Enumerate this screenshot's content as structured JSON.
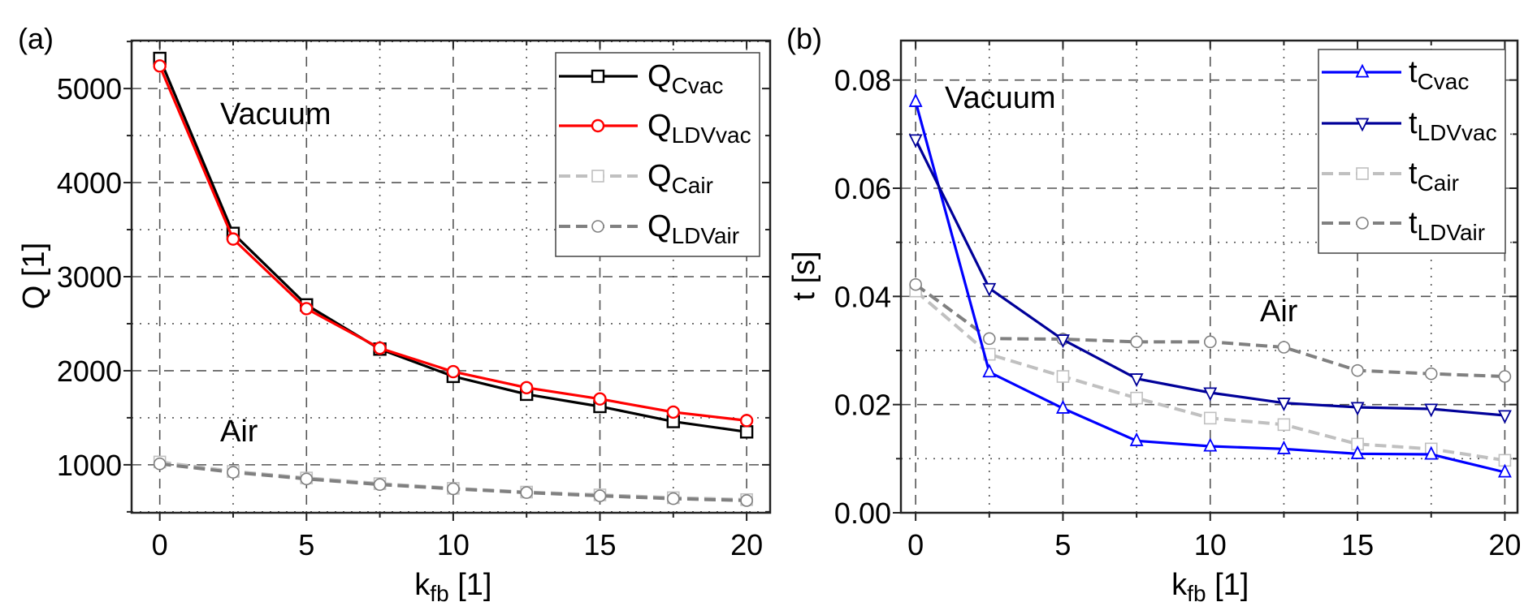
{
  "chart_data": [
    {
      "type": "line",
      "panel_label": "(a)",
      "xlabel": {
        "main": "k",
        "sub": "fb",
        "unit": " [1]"
      },
      "ylabel": "Q [1]",
      "x": [
        0,
        2.5,
        5,
        7.5,
        10,
        12.5,
        15,
        17.5,
        20
      ],
      "xlim": [
        -0.96,
        20.8
      ],
      "ylim": [
        490,
        5510
      ],
      "xticks": [
        0,
        5,
        10,
        15,
        20
      ],
      "yticks": [
        1000,
        2000,
        3000,
        4000,
        5000
      ],
      "grid": true,
      "legend_placement": "top-right",
      "annotations": [
        "Vacuum",
        "Air"
      ],
      "series": [
        {
          "name": "Q",
          "sub": "Cvac",
          "color": "#000000",
          "marker": "square",
          "dash": false,
          "values": [
            5320,
            3460,
            2700,
            2230,
            1940,
            1750,
            1620,
            1460,
            1350
          ]
        },
        {
          "name": "Q",
          "sub": "LDVvac",
          "color": "#ff0000",
          "marker": "circle",
          "dash": false,
          "values": [
            5240,
            3400,
            2660,
            2240,
            1990,
            1820,
            1700,
            1560,
            1470
          ]
        },
        {
          "name": "Q",
          "sub": "Cair",
          "color": "#c0c0c0",
          "marker": "square",
          "dash": true,
          "values": [
            1030,
            930,
            860,
            800,
            750,
            710,
            680,
            650,
            630
          ]
        },
        {
          "name": "Q",
          "sub": "LDVair",
          "color": "#808080",
          "marker": "circle",
          "dash": true,
          "values": [
            1010,
            920,
            850,
            790,
            745,
            705,
            670,
            640,
            620
          ]
        }
      ]
    },
    {
      "type": "line",
      "panel_label": "(b)",
      "xlabel": {
        "main": "k",
        "sub": "fb",
        "unit": " [1]"
      },
      "ylabel": "t [s]",
      "x": [
        0,
        2.5,
        5,
        7.5,
        10,
        12.5,
        15,
        17.5,
        20
      ],
      "xlim": [
        -0.5,
        20.43
      ],
      "ylim": [
        0,
        0.0873
      ],
      "xticks": [
        0,
        5,
        10,
        15,
        20
      ],
      "yticks": [
        0.0,
        0.02,
        0.04,
        0.06,
        0.08
      ],
      "ytick_labels": [
        "0.00",
        "0.02",
        "0.04",
        "0.06",
        "0.08"
      ],
      "grid": true,
      "legend_placement": "top-right",
      "annotations": [
        "Vacuum",
        "Air"
      ],
      "series": [
        {
          "name": "t",
          "sub": "Cvac",
          "color": "#0000ff",
          "marker": "triangle-up",
          "dash": false,
          "values": [
            0.076,
            0.026,
            0.0193,
            0.0133,
            0.0123,
            0.0118,
            0.0109,
            0.0108,
            0.0075
          ]
        },
        {
          "name": "t",
          "sub": "LDVvac",
          "color": "#000099",
          "marker": "triangle-down",
          "dash": false,
          "values": [
            0.069,
            0.0415,
            0.032,
            0.0248,
            0.0222,
            0.0203,
            0.0195,
            0.0192,
            0.018
          ]
        },
        {
          "name": "t",
          "sub": "Cair",
          "color": "#c0c0c0",
          "marker": "square",
          "dash": true,
          "values": [
            0.041,
            0.0293,
            0.0252,
            0.0212,
            0.0175,
            0.0163,
            0.0127,
            0.0118,
            0.0097
          ]
        },
        {
          "name": "t",
          "sub": "LDVair",
          "color": "#808080",
          "marker": "circle",
          "dash": true,
          "values": [
            0.0422,
            0.0322,
            0.0321,
            0.0316,
            0.0316,
            0.0306,
            0.0263,
            0.0257,
            0.0252
          ]
        }
      ]
    }
  ]
}
